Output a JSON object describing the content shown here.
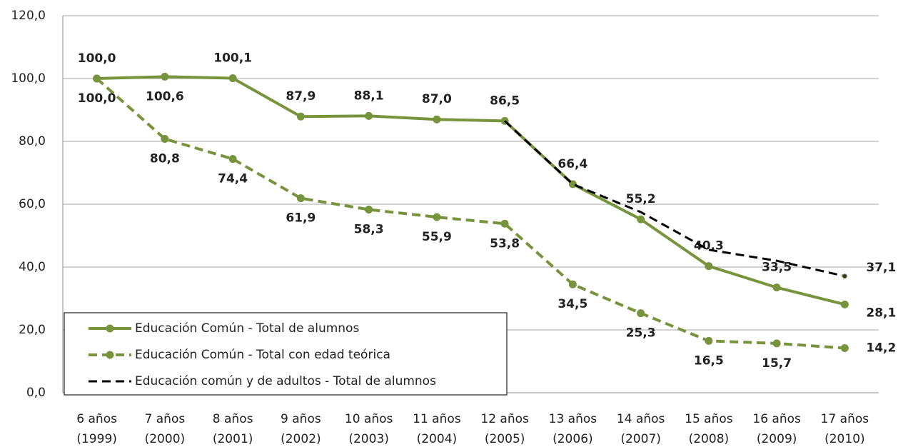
{
  "chart_data": {
    "type": "line",
    "categories": [
      "6 años (1999)",
      "7 años (2000)",
      "8 años (2001)",
      "9 años (2002)",
      "10 años (2003)",
      "11 años (2004)",
      "12 años (2005)",
      "13 años (2006)",
      "14 años (2007)",
      "15 años (2008)",
      "16 años (2009)",
      "17 años (2010)"
    ],
    "series": [
      {
        "name": "Educación Común - Total de alumnos",
        "color": "#77933c",
        "dash": "solid",
        "marker": true,
        "values": [
          100.0,
          100.6,
          100.1,
          87.9,
          88.1,
          87.0,
          86.5,
          66.4,
          55.2,
          40.3,
          33.5,
          28.1
        ],
        "value_labels": [
          "100,0",
          "100,6",
          "100,1",
          "87,9",
          "88,1",
          "87,0",
          "86,5",
          "66,4",
          "55,2",
          "40,3",
          "33,5",
          "28,1"
        ]
      },
      {
        "name": "Educación Común - Total con edad teórica",
        "color": "#77933c",
        "dash": "dashed",
        "marker": true,
        "values": [
          100.0,
          80.8,
          74.4,
          61.9,
          58.3,
          55.9,
          53.8,
          34.5,
          25.3,
          16.5,
          15.7,
          14.2
        ],
        "value_labels": [
          "100,0",
          "80,8",
          "74,4",
          "61,9",
          "58,3",
          "55,9",
          "53,8",
          "34,5",
          "25,3",
          "16,5",
          "15,7",
          "14,2"
        ]
      },
      {
        "name": "Educación común y de adultos - Total de alumnos",
        "color": "#000000",
        "dash": "dashed",
        "marker": false,
        "values": [
          null,
          null,
          null,
          null,
          null,
          null,
          86.5,
          66.4,
          57.5,
          45.5,
          42.0,
          37.1
        ],
        "value_labels": [
          null,
          null,
          null,
          null,
          null,
          null,
          null,
          null,
          null,
          null,
          null,
          "37,1"
        ]
      }
    ],
    "ylim": [
      0,
      120
    ],
    "yticks": [
      {
        "value": 0,
        "label": "0,0"
      },
      {
        "value": 20,
        "label": "20,0"
      },
      {
        "value": 40,
        "label": "40,0"
      },
      {
        "value": 60,
        "label": "60,0"
      },
      {
        "value": 80,
        "label": "80,0"
      },
      {
        "value": 100,
        "label": "100,0"
      },
      {
        "value": 120,
        "label": "120,0"
      }
    ],
    "grid": true,
    "legend": "lower left"
  }
}
